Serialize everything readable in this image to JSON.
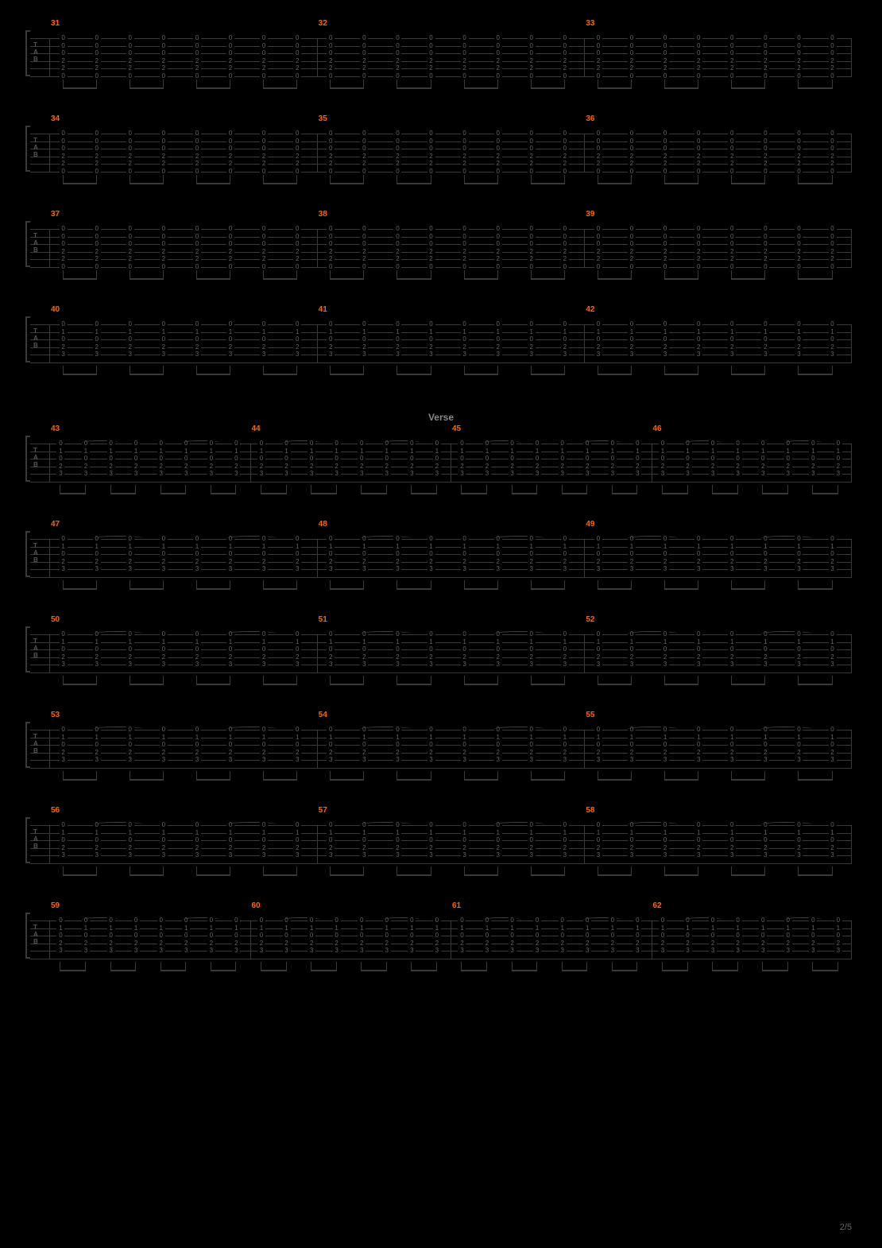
{
  "page": {
    "current": 2,
    "total": 5
  },
  "section_label": "Verse",
  "colors": {
    "background": "#000000",
    "staff_line": "#3a3a3a",
    "measure_number": "#ff6600",
    "fret_text": "#666666",
    "section_text": "#888888",
    "page_text": "#666666"
  },
  "layout": {
    "staff_height": 48,
    "string_count": 6,
    "rows_per_page": 10,
    "system_width": 1034,
    "clef_label": "TAB"
  },
  "rows": [
    {
      "measures": [
        31,
        32,
        33
      ],
      "bars_per_row": 3,
      "section_before": null,
      "pattern": "eighth_chords",
      "beams": 12
    },
    {
      "measures": [
        34,
        35,
        36
      ],
      "bars_per_row": 3,
      "section_before": null,
      "pattern": "eighth_chords",
      "beams": 12
    },
    {
      "measures": [
        37,
        38,
        39
      ],
      "bars_per_row": 3,
      "section_before": null,
      "pattern": "eighth_chords",
      "beams": 12
    },
    {
      "measures": [
        40,
        41,
        42
      ],
      "bars_per_row": 3,
      "section_before": null,
      "pattern": "eighth_chords_open",
      "beams": 12
    },
    {
      "measures": [
        43,
        44,
        45,
        46
      ],
      "bars_per_row": 4,
      "section_before": "Verse",
      "pattern": "open_ties",
      "beams": 12
    },
    {
      "measures": [
        47,
        48,
        49
      ],
      "bars_per_row": 3,
      "section_before": null,
      "pattern": "open_ties",
      "beams": 9
    },
    {
      "measures": [
        50,
        51,
        52
      ],
      "bars_per_row": 3,
      "section_before": null,
      "pattern": "open_ties",
      "beams": 9
    },
    {
      "measures": [
        53,
        54,
        55
      ],
      "bars_per_row": 3,
      "section_before": null,
      "pattern": "open_ties",
      "beams": 9
    },
    {
      "measures": [
        56,
        57,
        58
      ],
      "bars_per_row": 3,
      "section_before": null,
      "pattern": "open_ties",
      "beams": 9
    },
    {
      "measures": [
        59,
        60,
        61,
        62
      ],
      "bars_per_row": 4,
      "section_before": null,
      "pattern": "open_ties",
      "beams": 12
    }
  ],
  "fret_patterns": {
    "eighth_chords": {
      "strings": [
        0,
        0,
        0,
        2,
        2,
        0
      ],
      "notes_per_measure": 8
    },
    "eighth_chords_open": {
      "strings": [
        0,
        1,
        0,
        2,
        3,
        null
      ],
      "notes_per_measure": 8
    },
    "open_ties": {
      "strings": [
        0,
        1,
        0,
        2,
        3,
        null
      ],
      "notes_per_measure": 8
    }
  }
}
